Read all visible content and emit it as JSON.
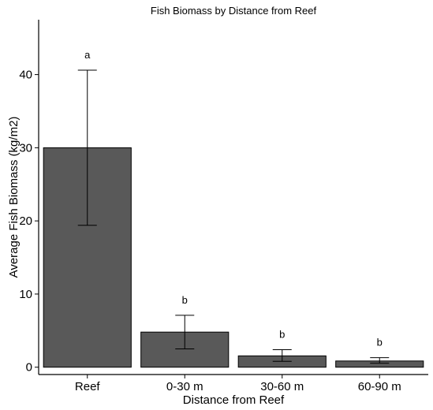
{
  "chart_data": {
    "type": "bar",
    "title": "Fish Biomass by Distance from Reef",
    "xlabel": "Distance from Reef",
    "ylabel": "Average Fish Biomass (kg/m2)",
    "categories": [
      "Reef",
      "0-30 m",
      "30-60 m",
      "60-90 m"
    ],
    "values": [
      30.0,
      4.8,
      1.55,
      0.85
    ],
    "error_low": [
      19.4,
      2.5,
      0.8,
      0.55
    ],
    "error_high": [
      40.6,
      7.1,
      2.4,
      1.3
    ],
    "significance_labels": [
      "a",
      "b",
      "b",
      "b"
    ],
    "ylim": [
      -1.0,
      47.5
    ],
    "yticks": [
      0,
      10,
      20,
      30,
      40
    ],
    "grid": false,
    "bar_color": "#595959",
    "bar_edge_color": "#000000"
  }
}
